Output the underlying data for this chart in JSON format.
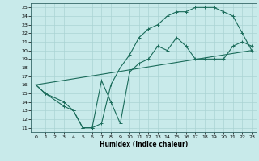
{
  "xlabel": "Humidex (Indice chaleur)",
  "bg_color": "#c8eaea",
  "grid_color": "#aad4d4",
  "line_color": "#1a6b5a",
  "xlim": [
    -0.5,
    23.5
  ],
  "ylim": [
    10.5,
    25.5
  ],
  "xticks": [
    0,
    1,
    2,
    3,
    4,
    5,
    6,
    7,
    8,
    9,
    10,
    11,
    12,
    13,
    14,
    15,
    16,
    17,
    18,
    19,
    20,
    21,
    22,
    23
  ],
  "yticks": [
    11,
    12,
    13,
    14,
    15,
    16,
    17,
    18,
    19,
    20,
    21,
    22,
    23,
    24,
    25
  ],
  "curve_upper_x": [
    0,
    1,
    3,
    4,
    5,
    6,
    7,
    8,
    9,
    10,
    11,
    12,
    13,
    14,
    15,
    16,
    17,
    18,
    19,
    20,
    21,
    22,
    23
  ],
  "curve_upper_y": [
    16,
    15,
    14,
    13,
    11,
    11,
    11.5,
    16,
    18,
    19.5,
    21.5,
    22.5,
    23,
    24,
    24.5,
    24.5,
    25,
    25,
    25,
    24.5,
    24,
    22,
    20
  ],
  "curve_lower_x": [
    0,
    1,
    3,
    4,
    5,
    6,
    7,
    8,
    9,
    10,
    11,
    12,
    13,
    14,
    15,
    16,
    17,
    18,
    19,
    20,
    21,
    22,
    23
  ],
  "curve_lower_y": [
    16,
    15,
    13.5,
    13,
    11,
    11,
    16.5,
    14,
    11.5,
    17.5,
    18.5,
    19,
    20.5,
    20,
    21.5,
    20.5,
    19,
    19,
    19,
    19,
    20.5,
    21,
    20.5
  ],
  "curve_line_x": [
    0,
    23
  ],
  "curve_line_y": [
    16,
    20
  ]
}
